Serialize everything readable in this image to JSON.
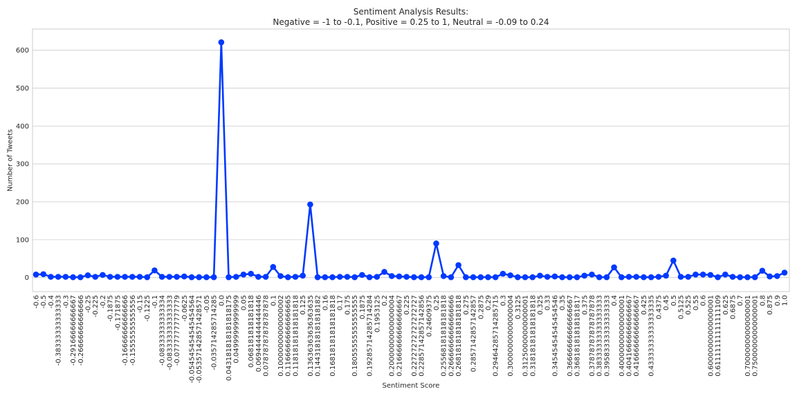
{
  "chart_data": {
    "type": "line",
    "title": "Sentiment Analysis Results:",
    "subtitle": "Negative = -1 to -0.1, Positive = 0.25 to 1, Neutral = -0.09 to 0.24",
    "xlabel": "Sentiment Score",
    "ylabel": "Number of Tweets",
    "ylim": [
      -37,
      656
    ],
    "y_ticks": [
      0,
      100,
      200,
      300,
      400,
      500,
      600
    ],
    "grid": true,
    "line_color": "#0039ff",
    "categories": [
      "-0.6",
      "-0.5",
      "-0.4",
      "-0.38333333333333",
      "-0.3",
      "-0.29166666666667",
      "-0.26666666666666",
      "-0.25",
      "-0.225",
      "-0.2",
      "-0.1875",
      "-0.171875",
      "-0.16666666666666",
      "-0.15555555555556",
      "-0.15",
      "-0.1225",
      "-0.1",
      "-0.08333333333334",
      "-0.083333333333333",
      "-0.07777777777779",
      "-0.0625",
      "-0.054545454545454564",
      "-0.053571428571428571",
      "-0.05",
      "-0.035714285714285",
      "0.0",
      "0.043181818181818175",
      "0.04999999999999",
      "0.05",
      "0.068181818181818",
      "0.0694444444444446",
      "0.07878787878787878",
      "0.1",
      "0.10000000000000002",
      "0.11666666666666665",
      "0.11818181818181818",
      "0.125",
      "0.13636363636363635",
      "0.14431818181818182",
      "0.16",
      "0.16818181818181818",
      "0.17",
      "0.175",
      "0.18055555555555555",
      "0.1875",
      "0.19285714285714284",
      "0.1953125",
      "0.2",
      "0.20000000000000004",
      "0.21666666666666667",
      "0.225",
      "0.22727272727272727",
      "0.22857142857142856",
      "0.24609375",
      "0.25",
      "0.25568181818181818",
      "0.26666666666666666",
      "0.26818181818181818",
      "0.275",
      "0.2857142857142857",
      "0.2875",
      "0.29",
      "0.29464285714285715",
      "0.3",
      "0.30000000000000004",
      "0.3125",
      "0.31250000000000001",
      "0.31818181818181818",
      "0.325",
      "0.33",
      "0.34545454545454546",
      "0.35",
      "0.36666666666666667",
      "0.36818181818181817",
      "0.375",
      "0.37878787878787878",
      "0.38333333333333333",
      "0.39583333333333333",
      "0.4",
      "0.40000000000000001",
      "0.40416666666666667",
      "0.41666666666666667",
      "0.425",
      "0.43333333333333335",
      "0.4375",
      "0.45",
      "0.5",
      "0.5125",
      "0.525",
      "0.55",
      "0.6",
      "0.60000000000000001",
      "0.61111111111111109",
      "0.625",
      "0.6875",
      "0.7",
      "0.70000000000000001",
      "0.75000000000000001",
      "0.8",
      "0.875",
      "0.9",
      "1.0"
    ],
    "series": [
      {
        "values": [
          8,
          9,
          2,
          2,
          2,
          1,
          1,
          6,
          2,
          7,
          2,
          2,
          2,
          2,
          2,
          1,
          19,
          2,
          2,
          2,
          3,
          1,
          1,
          1,
          1,
          621,
          1,
          2,
          8,
          10,
          2,
          2,
          28,
          4,
          1,
          2,
          5,
          193,
          1,
          1,
          1,
          2,
          2,
          1,
          7,
          1,
          2,
          15,
          4,
          3,
          2,
          1,
          1,
          1,
          90,
          4,
          1,
          33,
          1,
          1,
          1,
          1,
          1,
          10,
          6,
          1,
          1,
          1,
          5,
          2,
          3,
          1,
          1,
          1,
          5,
          8,
          1,
          1,
          27,
          1,
          2,
          2,
          1,
          1,
          2,
          5,
          45,
          2,
          2,
          8,
          8,
          7,
          1,
          8,
          2,
          1,
          1,
          1,
          18,
          3,
          4,
          13
        ]
      }
    ]
  }
}
